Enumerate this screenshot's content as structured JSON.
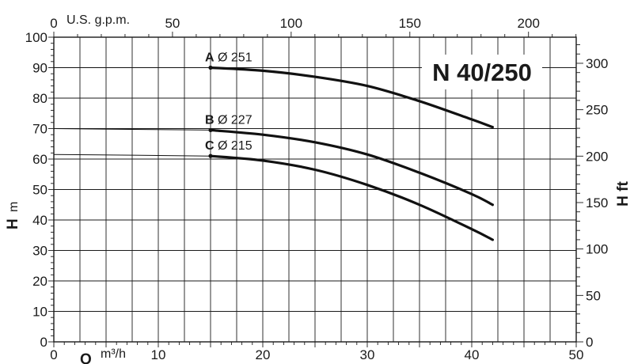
{
  "chart_data": {
    "type": "line",
    "title": "N 40/250",
    "x_primary": {
      "unit_label": "m³/h",
      "symbol": "Q",
      "range": [
        0,
        50
      ],
      "ticks": [
        0,
        10,
        20,
        30,
        40,
        50
      ]
    },
    "x_secondary": {
      "unit_label": "U.S. g.p.m.",
      "range": [
        0,
        220.1
      ],
      "ticks": [
        0,
        50,
        100,
        150,
        200
      ]
    },
    "y_primary": {
      "unit_label": "m",
      "symbol": "H",
      "range": [
        0,
        100
      ],
      "ticks": [
        0,
        10,
        20,
        30,
        40,
        50,
        60,
        70,
        80,
        90,
        100
      ]
    },
    "y_secondary": {
      "unit_label": "H ft",
      "range": [
        0,
        328.1
      ],
      "ticks": [
        0,
        50,
        100,
        150,
        200,
        250,
        300
      ]
    },
    "grid": true,
    "series": [
      {
        "name": "A",
        "label": "Ø 251",
        "x": [
          0,
          15,
          20,
          25,
          30,
          35,
          40,
          42
        ],
        "y": [
          90,
          90,
          89,
          87,
          84,
          79,
          73,
          70.5
        ],
        "label_at": [
          15,
          90
        ]
      },
      {
        "name": "B",
        "label": "Ø 227",
        "x": [
          0,
          15,
          20,
          25,
          30,
          35,
          40,
          42
        ],
        "y": [
          70,
          69.5,
          68,
          65.5,
          61.5,
          55.5,
          48.5,
          45
        ],
        "label_at": [
          15,
          69.5
        ]
      },
      {
        "name": "C",
        "label": "Ø 215",
        "x": [
          0,
          15,
          20,
          25,
          30,
          35,
          40,
          42
        ],
        "y": [
          61.5,
          61,
          59.5,
          56.5,
          51.5,
          45,
          37,
          33.5
        ],
        "label_at": [
          15,
          61
        ]
      }
    ]
  }
}
